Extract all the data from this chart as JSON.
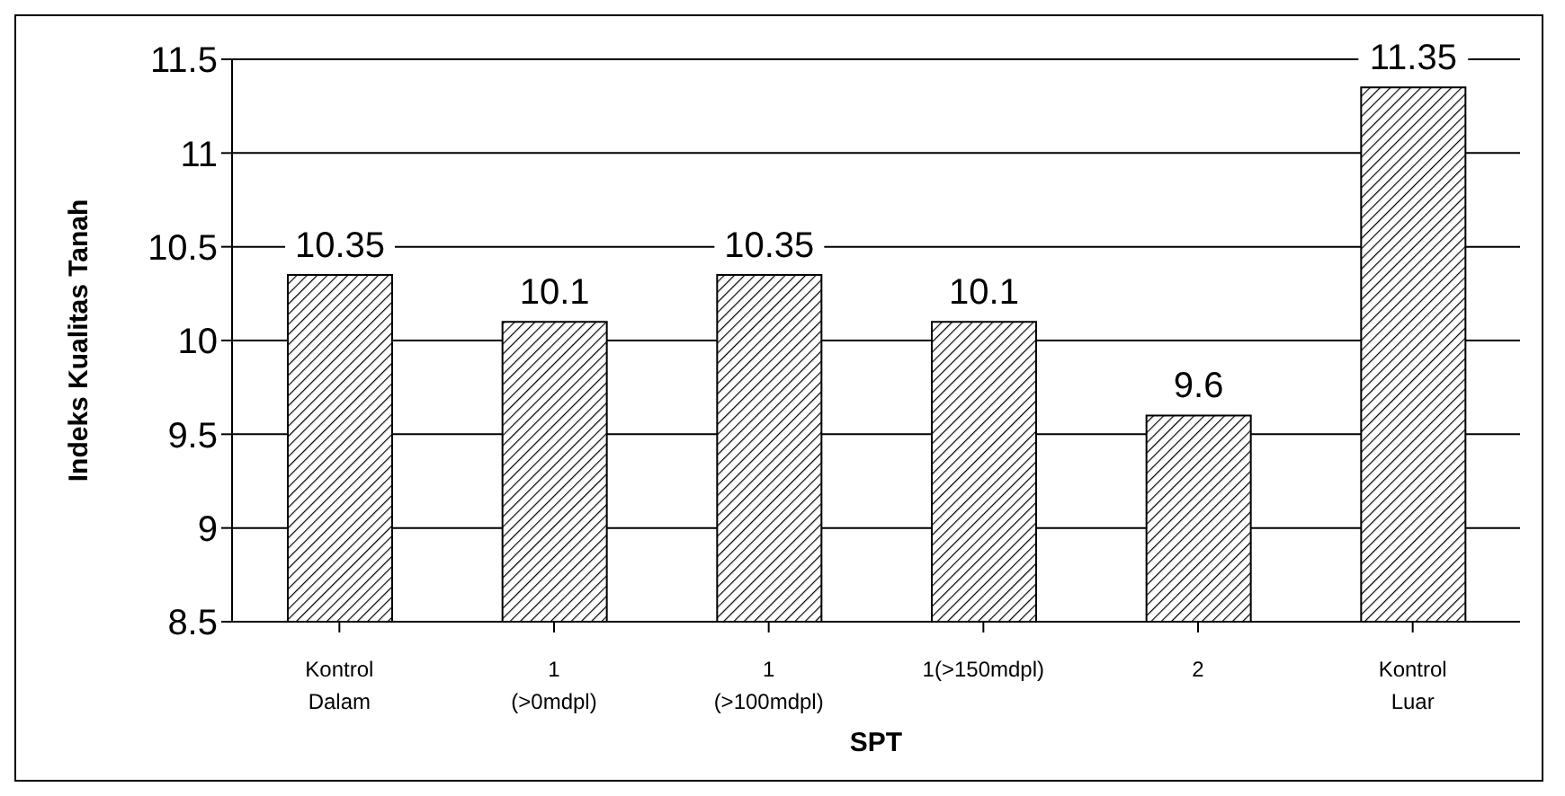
{
  "chart_data": {
    "type": "bar",
    "xlabel": "SPT",
    "ylabel": "Indeks Kualitas Tanah",
    "categories": [
      "Kontrol Dalam",
      "1 (>0mdpl)",
      "1 (>100mdpl)",
      "1(>150mdpl)",
      "2",
      "Kontrol Luar"
    ],
    "values": [
      10.35,
      10.1,
      10.35,
      10.1,
      9.6,
      11.35
    ],
    "color": "#000000",
    "ylim": [
      8.5,
      11.5
    ],
    "yticks": [
      8.5,
      9,
      9.5,
      10,
      10.5,
      11,
      11.5
    ],
    "grid": "y",
    "data_labels": true,
    "legend": false
  }
}
